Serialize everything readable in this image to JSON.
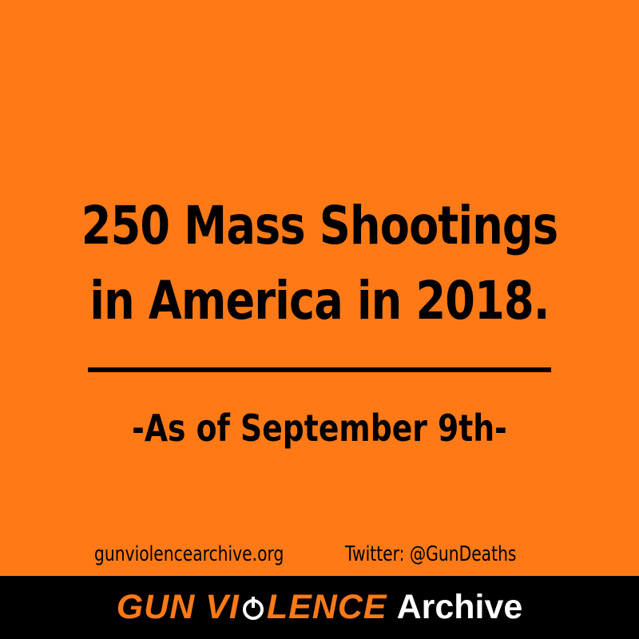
{
  "headline": {
    "line1": "250 Mass Shootings",
    "line2": "in America in 2018."
  },
  "subline": "-As of September 9th-",
  "credits": {
    "website": "gunviolencearchive.org",
    "twitter": "Twitter: @GunDeaths"
  },
  "brand": {
    "part1": "GUN VI",
    "part2": "LENCE",
    "part3": "Archive",
    "logo_icon": "power-o-icon",
    "accent_color": "#ff7a17",
    "text_color": "#ffffff",
    "bar_color": "#000000"
  },
  "colors": {
    "background": "#ff7a17",
    "text": "#000000"
  }
}
